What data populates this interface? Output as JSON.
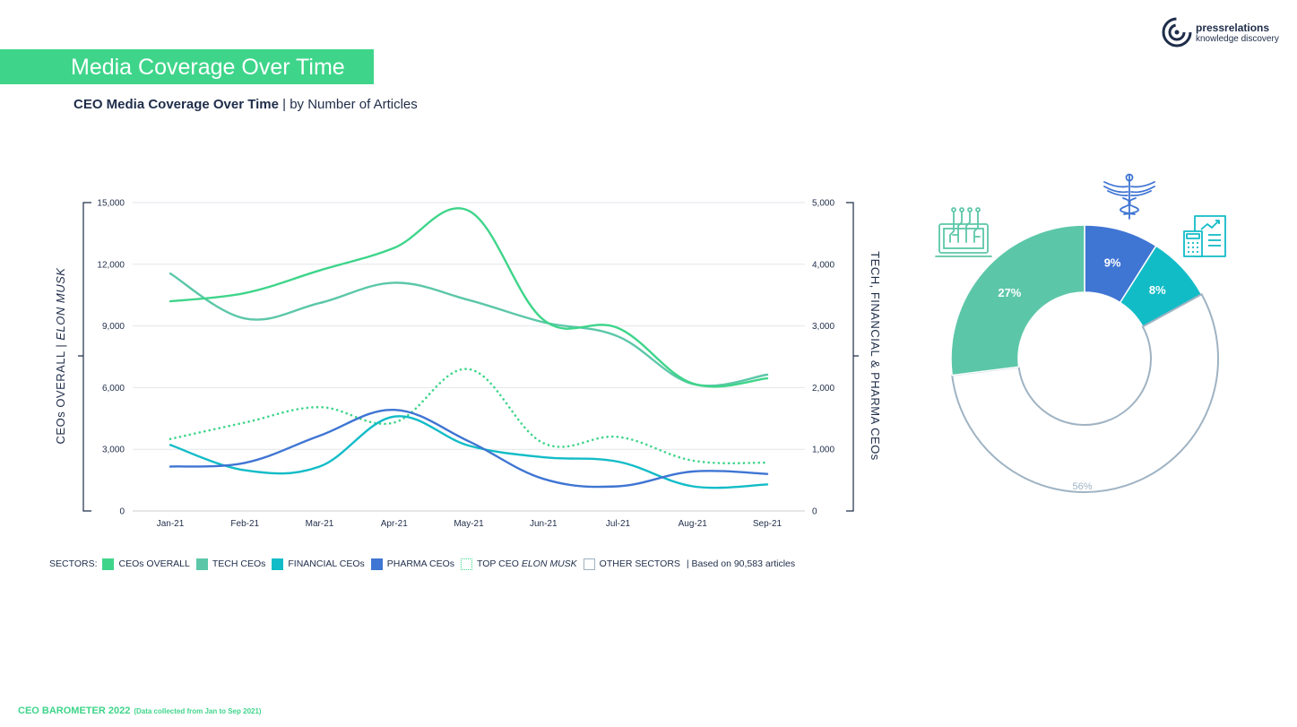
{
  "header": {
    "title": "Media Coverage Over Time",
    "subtitle_bold": "CEO Media Coverage Over Time",
    "subtitle_rest": " | by Number of Articles"
  },
  "brand": {
    "name": "pressrelations",
    "tagline": "knowledge discovery",
    "icon": "brand-logo-icon"
  },
  "chart_data": [
    {
      "type": "line",
      "categories": [
        "Jan-21",
        "Feb-21",
        "Mar-21",
        "Apr-21",
        "May-21",
        "Jun-21",
        "Jul-21",
        "Aug-21",
        "Sep-21"
      ],
      "left_axis": {
        "label_main": "CEOs OVERALL | ",
        "label_italic": "ELON MUSK",
        "ticks": [
          "0",
          "3,000",
          "6,000",
          "9,000",
          "12,000",
          "15,000"
        ],
        "ylim": [
          0,
          15000
        ]
      },
      "right_axis": {
        "label": "TECH, FINANCIAL & PHARMA CEOs",
        "ticks": [
          "0",
          "1,000",
          "2,000",
          "3,000",
          "4,000",
          "5,000"
        ],
        "ylim": [
          0,
          5000
        ]
      },
      "grid": true,
      "series": [
        {
          "name": "CEOs OVERALL",
          "axis": "left",
          "color": "#3ed58a",
          "style": "solid",
          "values": [
            10200,
            10600,
            11700,
            12800,
            14600,
            9300,
            8900,
            6200,
            6450
          ]
        },
        {
          "name": "TECH CEOs",
          "axis": "right",
          "color": "#5cc7a8",
          "style": "solid",
          "values": [
            3850,
            3120,
            3370,
            3700,
            3420,
            3060,
            2830,
            2060,
            2210
          ]
        },
        {
          "name": "FINANCIAL CEOs",
          "axis": "right",
          "color": "#12bcc7",
          "style": "solid",
          "values": [
            1070,
            660,
            720,
            1530,
            1060,
            870,
            800,
            400,
            430
          ]
        },
        {
          "name": "PHARMA CEOs",
          "axis": "right",
          "color": "#3f75d3",
          "style": "solid",
          "values": [
            720,
            780,
            1220,
            1640,
            1130,
            520,
            400,
            640,
            600
          ]
        },
        {
          "name": "TOP CEO ELON MUSK",
          "axis": "left",
          "color": "#3ed58a",
          "style": "dotted",
          "values": [
            3500,
            4300,
            5050,
            4300,
            6900,
            3300,
            3600,
            2450,
            2350
          ]
        }
      ]
    },
    {
      "type": "pie",
      "donut": true,
      "slices": [
        {
          "name": "PHARMA CEOs",
          "value": 9,
          "label": "9%",
          "color": "#3f75d3"
        },
        {
          "name": "FINANCIAL CEOs",
          "value": 8,
          "label": "8%",
          "color": "#12bcc7"
        },
        {
          "name": "OTHER SECTORS",
          "value": 56,
          "label": "56%",
          "color": "#ffffff",
          "outline": "#9fb3c3"
        },
        {
          "name": "TECH CEOs",
          "value": 27,
          "label": "27%",
          "color": "#5cc7a8"
        }
      ],
      "icons": [
        "caduceus-icon",
        "financial-report-icon",
        "circuit-laptop-icon"
      ]
    }
  ],
  "legend": {
    "prefix": "SECTORS:",
    "items": [
      {
        "label": "CEOs OVERALL",
        "color": "#3ed58a",
        "style": "solid"
      },
      {
        "label": "TECH CEOs",
        "color": "#5cc7a8",
        "style": "solid"
      },
      {
        "label": "FINANCIAL CEOs",
        "color": "#12bcc7",
        "style": "solid"
      },
      {
        "label": "PHARMA CEOs",
        "color": "#3f75d3",
        "style": "solid"
      },
      {
        "label": "TOP CEO ",
        "label_italic": "ELON MUSK",
        "color": "#3ed58a",
        "style": "dotted"
      },
      {
        "label": "OTHER SECTORS",
        "color": "#9fb3c3",
        "style": "outline"
      }
    ],
    "note": "|  Based on 90,583 articles"
  },
  "footer": {
    "title": "CEO BAROMETER 2022",
    "note": "(Data collected from Jan to Sep 2021)"
  }
}
